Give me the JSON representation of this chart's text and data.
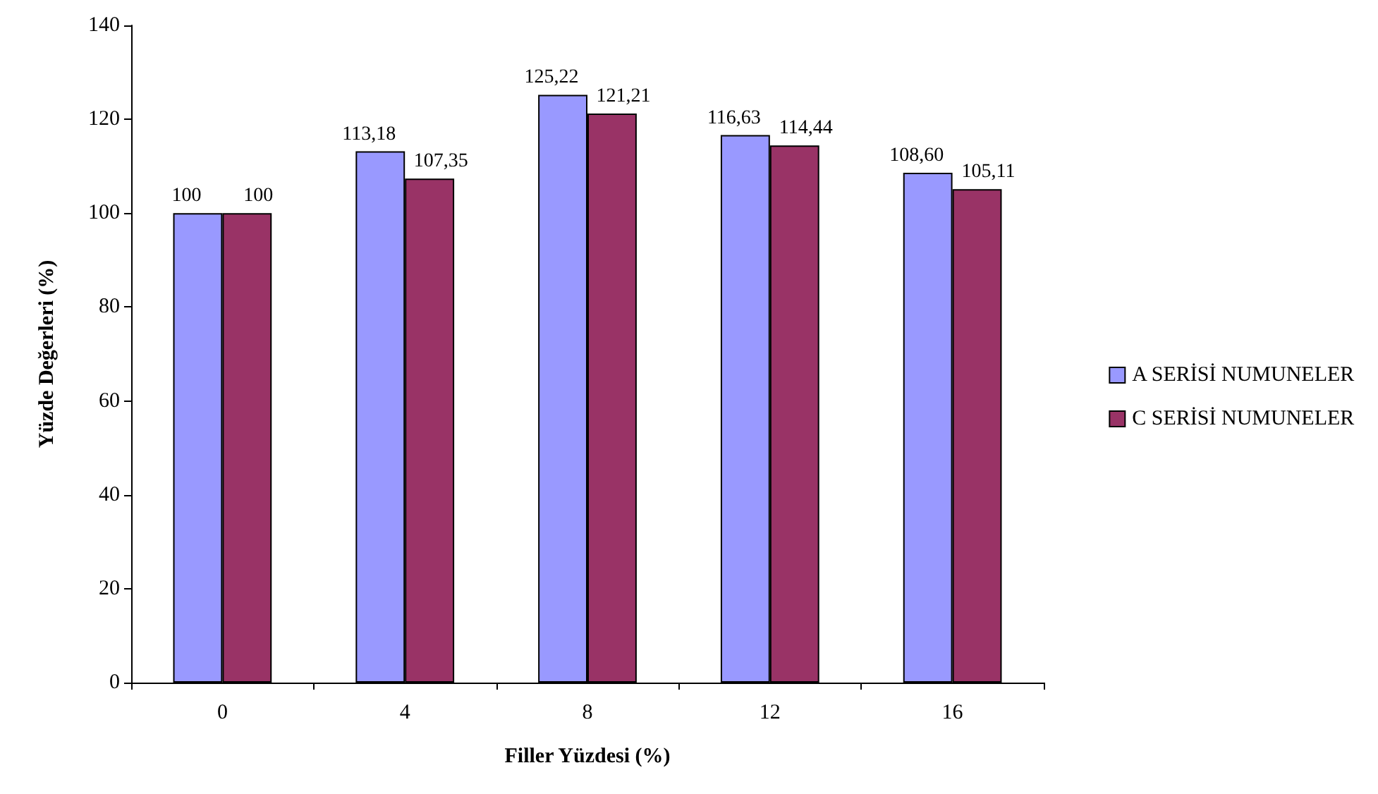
{
  "chart_data": {
    "type": "bar",
    "xlabel": "Filler Yüzdesi (%)",
    "ylabel": "Yüzde Değerleri (%)",
    "categories": [
      "0",
      "4",
      "8",
      "12",
      "16"
    ],
    "series": [
      {
        "name": "A SERİSİ NUMUNELER",
        "color": "#9999ff",
        "values": [
          100,
          113.18,
          125.22,
          116.63,
          108.6
        ],
        "value_labels": [
          "100",
          "113,18",
          "125,22",
          "116,63",
          "108,60"
        ]
      },
      {
        "name": "C SERİSİ NUMUNELER",
        "color": "#993366",
        "values": [
          100,
          107.35,
          121.21,
          114.44,
          105.11
        ],
        "value_labels": [
          "100",
          "107,35",
          "121,21",
          "114,44",
          "105,11"
        ]
      }
    ],
    "ylim": [
      0,
      140
    ],
    "yticks": [
      0,
      20,
      40,
      60,
      80,
      100,
      120,
      140
    ],
    "grid": false,
    "legend": "right"
  }
}
